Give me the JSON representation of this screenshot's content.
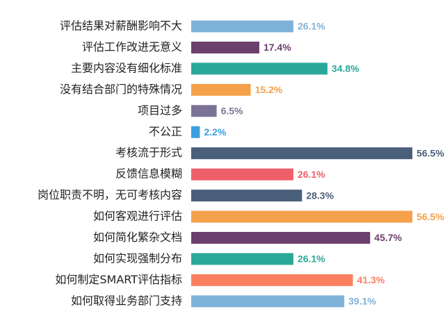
{
  "chart_data": {
    "type": "bar",
    "orientation": "horizontal",
    "categories": [
      "评估结果对薪酬影响不大",
      "评估工作改进无意义",
      "主要内容没有细化标准",
      "没有结合部门的特殊情况",
      "项目过多",
      "不公正",
      "考核流于形式",
      "反馈信息模糊",
      "岗位职责不明，无可考核内容",
      "如何客观进行评估",
      "如何简化繁杂文档",
      "如何实现强制分布",
      "如何制定SMART评估指标",
      "如何取得业务部门支持"
    ],
    "values": [
      26.1,
      17.4,
      34.8,
      15.2,
      6.5,
      2.2,
      56.5,
      26.1,
      28.3,
      56.5,
      45.7,
      26.1,
      41.3,
      39.1
    ],
    "value_labels": [
      "26.1%",
      "17.4%",
      "34.8%",
      "15.2%",
      "6.5%",
      "2.2%",
      "56.5%",
      "26.1%",
      "28.3%",
      "56.5%",
      "45.7%",
      "26.1%",
      "41.3%",
      "39.1%"
    ],
    "colors": [
      "#7fb2d9",
      "#6b3f6e",
      "#2aa89a",
      "#f5a04a",
      "#7b7396",
      "#3a9ee0",
      "#4a5f7a",
      "#ef5f6a",
      "#4a5f7a",
      "#f5a04a",
      "#6b3f6e",
      "#2aa89a",
      "#fb8060",
      "#7fb2d9"
    ]
  }
}
